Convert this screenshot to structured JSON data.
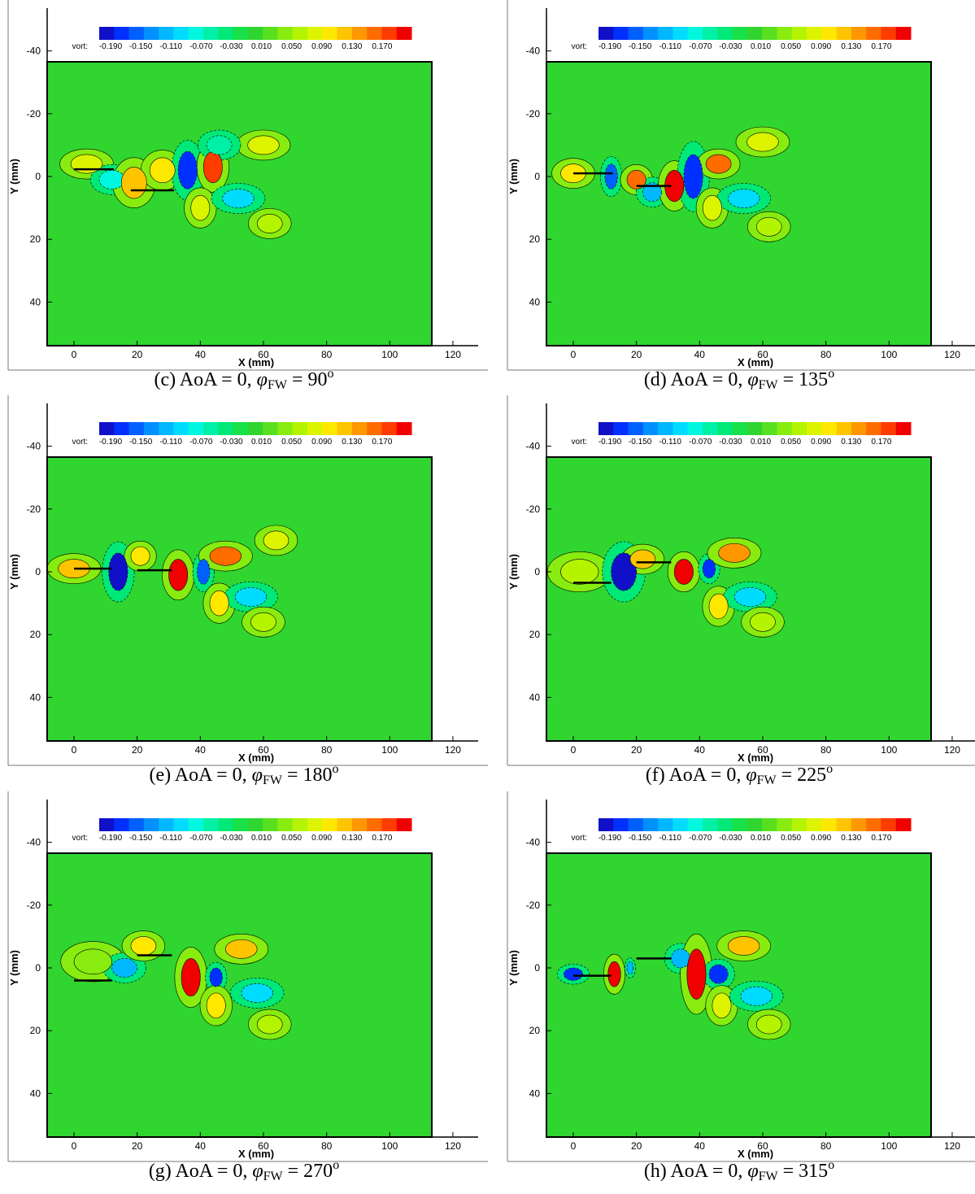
{
  "panels": [
    {
      "caption": {
        "prefix": "(c) AoA = 0,",
        "symbol": "φ",
        "subscript": "FW",
        "suffix": "= 90",
        "superscript": "o"
      }
    },
    {
      "caption": {
        "prefix": "(d) AoA = 0,",
        "symbol": "φ",
        "subscript": "FW",
        "suffix": "= 135",
        "superscript": "o"
      }
    },
    {
      "caption": {
        "prefix": "(e) AoA = 0,",
        "symbol": "φ",
        "subscript": "FW",
        "suffix": "= 180",
        "superscript": "o"
      }
    },
    {
      "caption": {
        "prefix": "(f) AoA = 0,",
        "symbol": "φ",
        "subscript": "FW",
        "suffix": "= 225",
        "superscript": "o"
      }
    },
    {
      "caption": {
        "prefix": "(g) AoA = 0,",
        "symbol": "φ",
        "subscript": "FW",
        "suffix": "= 270",
        "superscript": "o"
      }
    },
    {
      "caption": {
        "prefix": "(h) AoA = 0,",
        "symbol": "φ",
        "subscript": "FW",
        "suffix": "= 315",
        "superscript": "o"
      }
    }
  ],
  "axes": {
    "xlabel": "X (mm)",
    "ylabel": "Y (mm)",
    "xticks": [
      0,
      20,
      40,
      60,
      80,
      100,
      120
    ],
    "yticks": [
      -40,
      -20,
      0,
      20,
      40
    ]
  },
  "colorbar": {
    "label": "vort:",
    "ticks": [
      "-0.190",
      "-0.150",
      "-0.110",
      "-0.070",
      "-0.030",
      "0.010",
      "0.050",
      "0.090",
      "0.130",
      "0.170"
    ]
  }
}
